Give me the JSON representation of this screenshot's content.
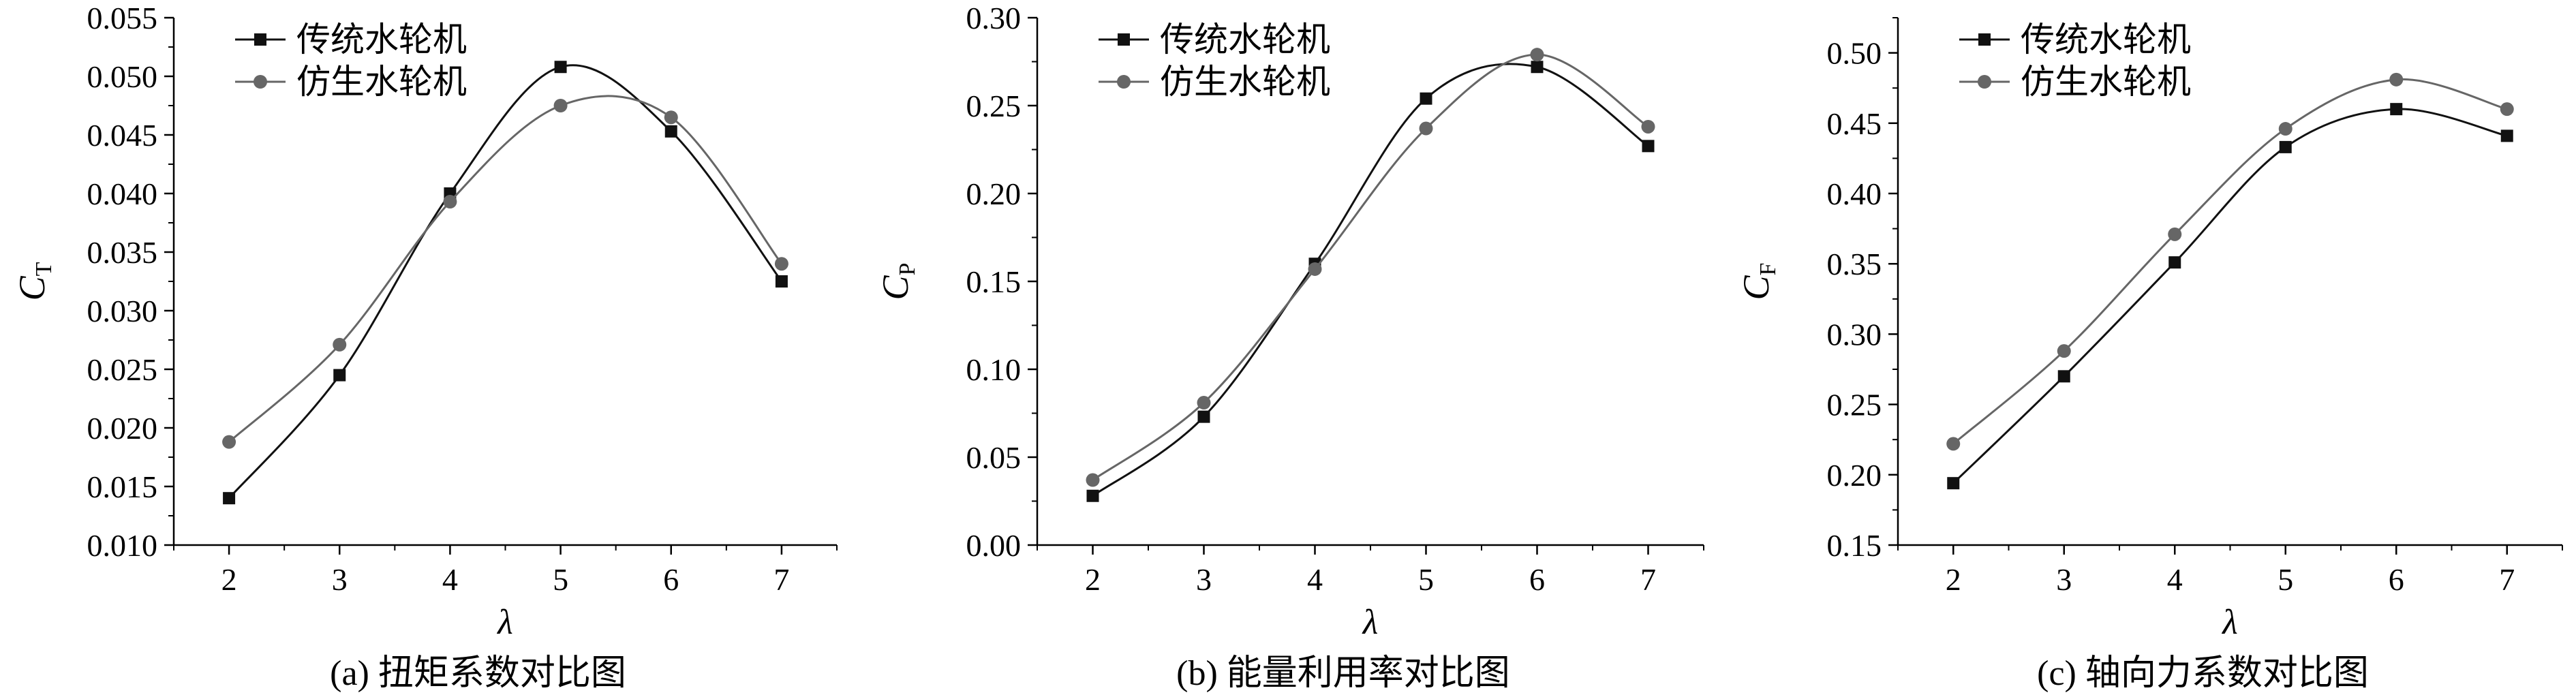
{
  "chart_data": [
    {
      "type": "line",
      "caption": "(a) 扭矩系数对比图",
      "xlabel": "λ",
      "ylabel": "C",
      "ylabel_sub": "T",
      "xlim": [
        1.5,
        7.5
      ],
      "ylim": [
        0.01,
        0.055
      ],
      "xticks": [
        2,
        3,
        4,
        5,
        6,
        7
      ],
      "yticks": [
        0.01,
        0.015,
        0.02,
        0.025,
        0.03,
        0.035,
        0.04,
        0.045,
        0.05,
        0.055
      ],
      "ytick_decimals": 3,
      "legend": "top-left",
      "grid": false,
      "x": [
        2,
        3,
        4,
        5,
        6,
        7
      ],
      "series": [
        {
          "name": "传统水轮机",
          "marker": "square",
          "color": "#111111",
          "values": [
            0.014,
            0.0245,
            0.04,
            0.0508,
            0.0453,
            0.0325
          ]
        },
        {
          "name": "仿生水轮机",
          "marker": "circle",
          "color": "#666666",
          "values": [
            0.0188,
            0.0271,
            0.0393,
            0.0475,
            0.0465,
            0.034
          ]
        }
      ]
    },
    {
      "type": "line",
      "caption": "(b) 能量利用率对比图",
      "xlabel": "λ",
      "ylabel": "C",
      "ylabel_sub": "P",
      "xlim": [
        1.5,
        7.5
      ],
      "ylim": [
        0.0,
        0.3
      ],
      "xticks": [
        2,
        3,
        4,
        5,
        6,
        7
      ],
      "yticks": [
        0.0,
        0.05,
        0.1,
        0.15,
        0.2,
        0.25,
        0.3
      ],
      "ytick_decimals": 2,
      "legend": "top-left",
      "grid": false,
      "x": [
        2,
        3,
        4,
        5,
        6,
        7
      ],
      "series": [
        {
          "name": "传统水轮机",
          "marker": "square",
          "color": "#111111",
          "values": [
            0.028,
            0.073,
            0.16,
            0.254,
            0.272,
            0.227
          ]
        },
        {
          "name": "仿生水轮机",
          "marker": "circle",
          "color": "#666666",
          "values": [
            0.037,
            0.081,
            0.157,
            0.237,
            0.279,
            0.238
          ]
        }
      ]
    },
    {
      "type": "line",
      "caption": "(c) 轴向力系数对比图",
      "xlabel": "λ",
      "ylabel": "C",
      "ylabel_sub": "F",
      "xlim": [
        1.5,
        7.5
      ],
      "ylim": [
        0.15,
        0.525
      ],
      "xticks": [
        2,
        3,
        4,
        5,
        6,
        7
      ],
      "yticks": [
        0.15,
        0.2,
        0.25,
        0.3,
        0.35,
        0.4,
        0.45,
        0.5
      ],
      "ytick_decimals": 2,
      "legend": "top-left",
      "grid": false,
      "x": [
        2,
        3,
        4,
        5,
        6,
        7
      ],
      "series": [
        {
          "name": "传统水轮机",
          "marker": "square",
          "color": "#111111",
          "values": [
            0.194,
            0.27,
            0.351,
            0.433,
            0.46,
            0.441
          ]
        },
        {
          "name": "仿生水轮机",
          "marker": "circle",
          "color": "#666666",
          "values": [
            0.222,
            0.288,
            0.371,
            0.446,
            0.481,
            0.46
          ]
        }
      ]
    }
  ]
}
